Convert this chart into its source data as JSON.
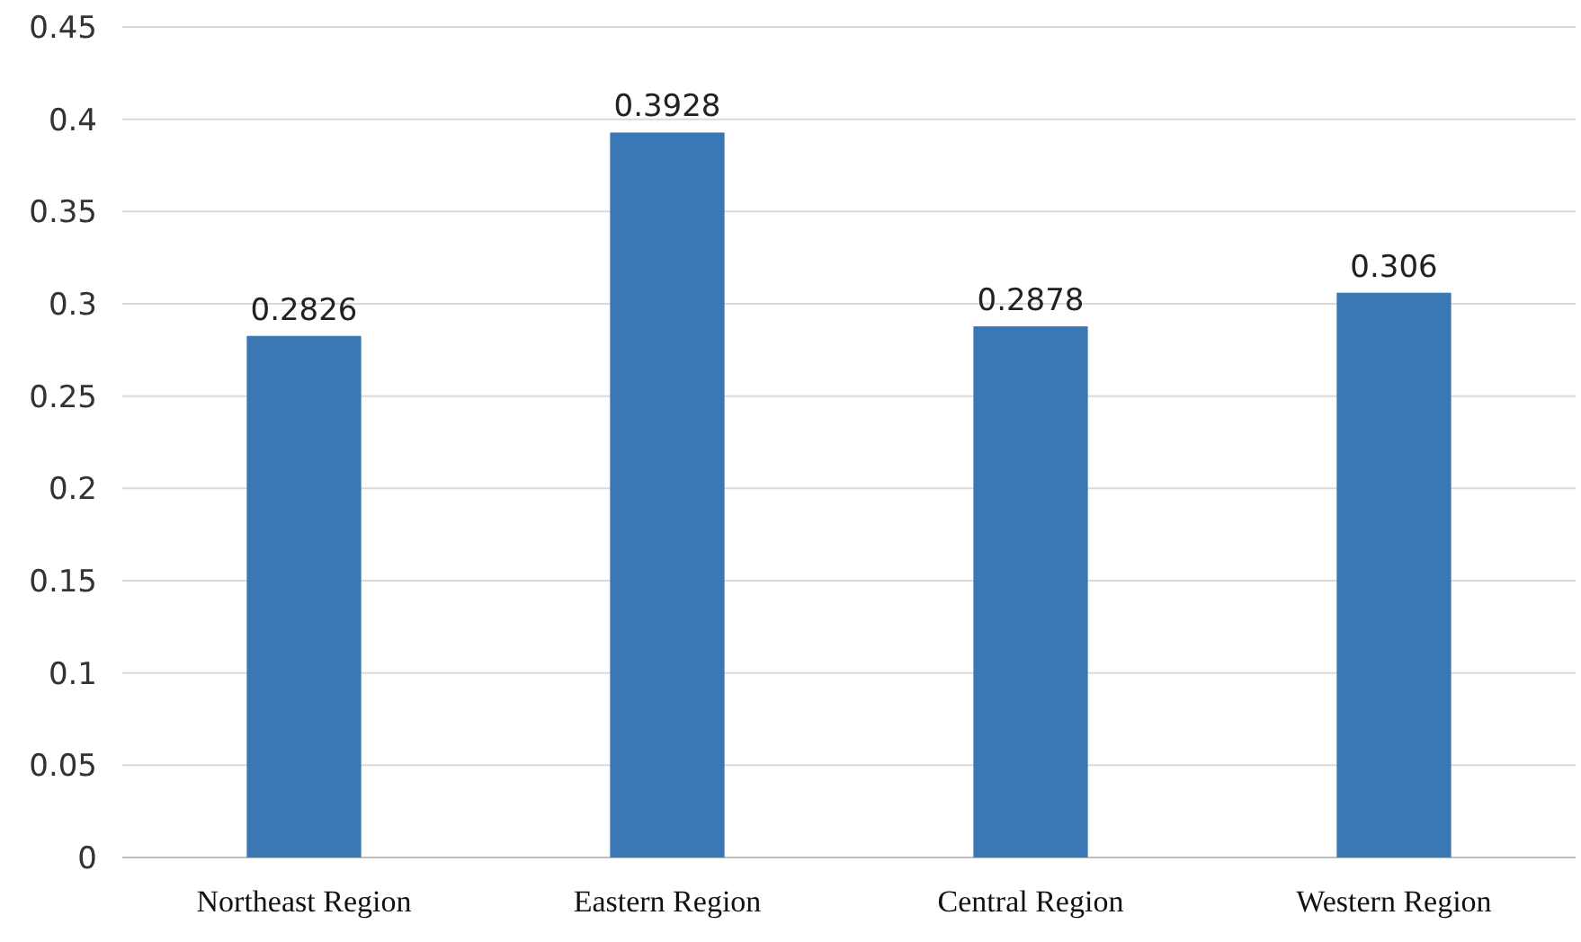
{
  "chart_data": {
    "type": "bar",
    "categories": [
      "Northeast Region",
      "Eastern Region",
      "Central Region",
      "Western Region"
    ],
    "values": [
      0.2826,
      0.3928,
      0.2878,
      0.306
    ],
    "color": "#3b76b5",
    "ylim": [
      0,
      0.45
    ],
    "yticks": [
      0,
      0.05,
      0.1,
      0.15,
      0.2,
      0.25,
      0.3,
      0.35,
      0.4,
      0.45
    ],
    "grid": "y",
    "data_labels": true
  }
}
